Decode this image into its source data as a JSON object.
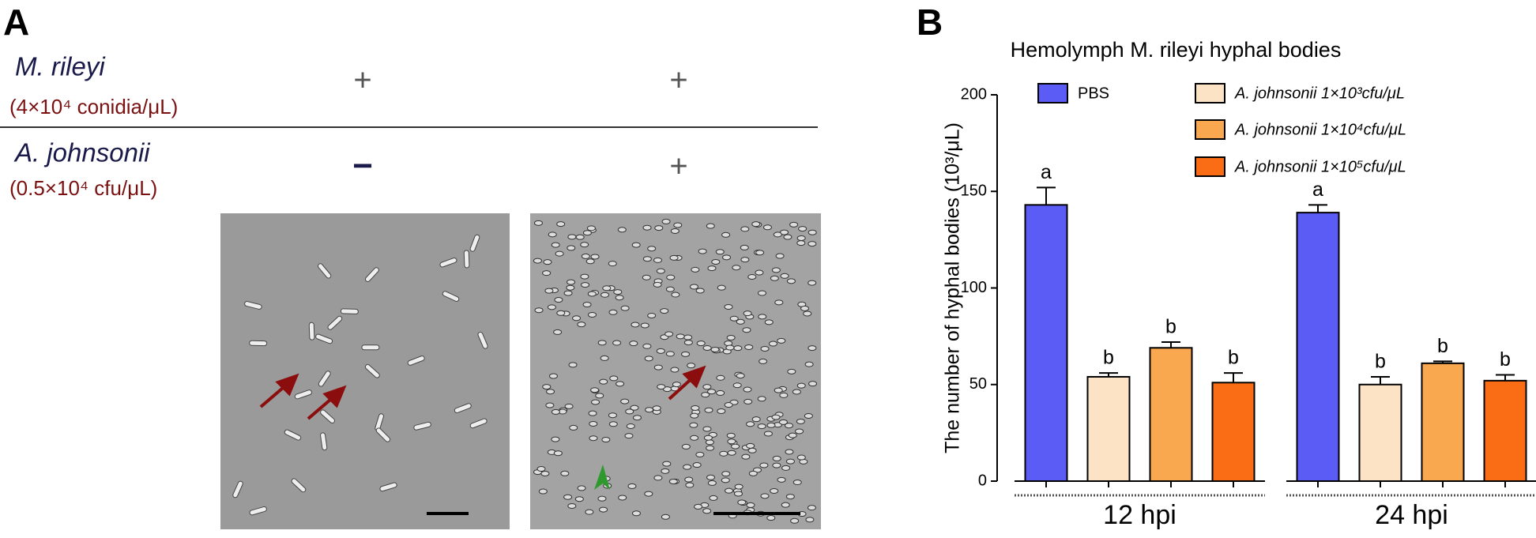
{
  "panel_a": {
    "label": "A",
    "rows": [
      {
        "name": "M. rileyi",
        "dose": "(4×10⁴ conidia/μL)",
        "signs": [
          "+",
          "+"
        ]
      },
      {
        "name": "A. johnsonii",
        "dose": "(0.5×10⁴ cfu/μL)",
        "signs": [
          "−",
          "+"
        ]
      }
    ]
  },
  "chart_data": {
    "type": "bar",
    "panel_label": "B",
    "title": "Hemolymph M. rileyi hyphal bodies",
    "y_label": "The number of hyphal bodies (10³/μL)",
    "categories": [
      "12 hpi",
      "24 hpi"
    ],
    "ylim": [
      0,
      200
    ],
    "yticks": [
      0,
      50,
      100,
      150,
      200
    ],
    "series": [
      {
        "name": "PBS",
        "color": "#5b5bf5",
        "values": [
          143,
          139
        ],
        "errors": [
          9,
          4
        ],
        "labels": [
          "a",
          "a"
        ]
      },
      {
        "name": "A. johnsonii 1×10³cfu/μL",
        "color": "#fde3c6",
        "values": [
          54,
          50
        ],
        "errors": [
          2,
          4
        ],
        "labels": [
          "b",
          "b"
        ]
      },
      {
        "name": "A. johnsonii 1×10⁴cfu/μL",
        "color": "#f9a84f",
        "values": [
          69,
          61
        ],
        "errors": [
          3,
          1
        ],
        "labels": [
          "b",
          "b"
        ]
      },
      {
        "name": "A. johnsonii 1×10⁵cfu/μL",
        "color": "#fa6d14",
        "values": [
          51,
          52
        ],
        "errors": [
          5,
          3
        ],
        "labels": [
          "b",
          "b"
        ]
      }
    ]
  }
}
